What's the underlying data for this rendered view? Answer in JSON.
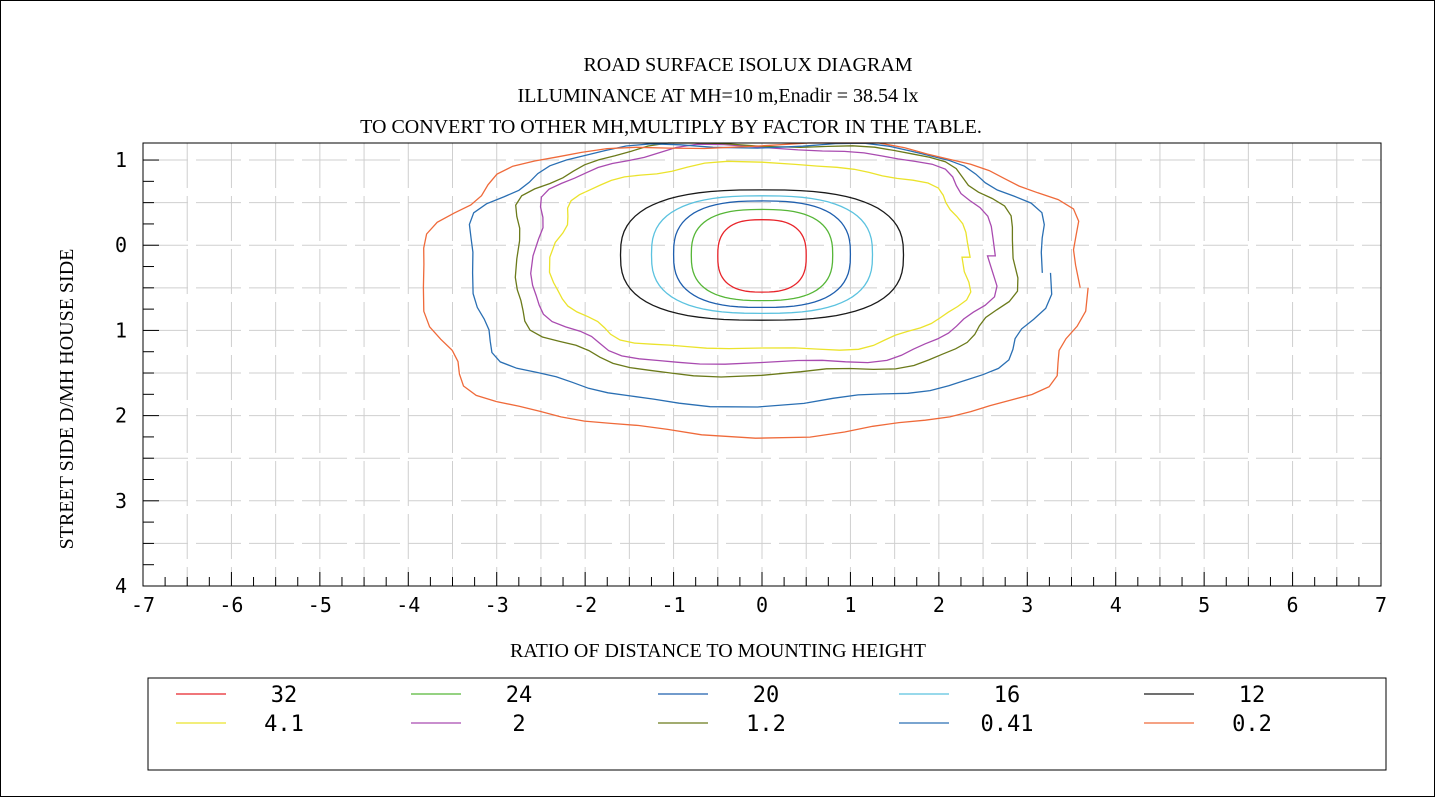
{
  "chart_data": {
    "type": "contour",
    "title": "ROAD SURFACE ISOLUX DIAGRAM",
    "subtitle_lines": [
      "ILLUMINANCE AT MH=10 m,Enadir = 38.54  lx",
      "TO CONVERT TO OTHER MH,MULTIPLY BY FACTOR IN THE TABLE."
    ],
    "xlabel": "RATIO OF DISTANCE TO MOUNTING HEIGHT",
    "ylabel": "STREET SIDE  D/MH  HOUSE SIDE",
    "xlim": [
      -7,
      7
    ],
    "ylim": [
      -1.2,
      4
    ],
    "y_inverted": true,
    "x_ticks": [
      -7,
      -6,
      -5,
      -4,
      -3,
      -2,
      -1,
      0,
      1,
      2,
      3,
      4,
      5,
      6,
      7
    ],
    "x_tick_labels": [
      "-7",
      "-6",
      "-5",
      "-4",
      "-3",
      "-2",
      "-1",
      "0",
      "1",
      "2",
      "3",
      "4",
      "5",
      "6",
      "7"
    ],
    "y_ticks": [
      -1,
      0,
      1,
      2,
      3,
      4
    ],
    "y_tick_labels": [
      "1",
      "0",
      "1",
      "2",
      "3",
      "4"
    ],
    "grid": true,
    "legend_position": "bottom",
    "levels": [
      {
        "value": 32,
        "label": "32",
        "color": "#e8242a",
        "xmin": -0.5,
        "xmax": 0.5,
        "ymin": -0.3,
        "ymax": 0.55
      },
      {
        "value": 24,
        "label": "24",
        "color": "#56b637",
        "xmin": -0.8,
        "xmax": 0.8,
        "ymin": -0.42,
        "ymax": 0.65
      },
      {
        "value": 20,
        "label": "20",
        "color": "#1f5fae",
        "xmin": -1.0,
        "xmax": 1.0,
        "ymin": -0.52,
        "ymax": 0.73
      },
      {
        "value": 16,
        "label": "16",
        "color": "#5bc2df",
        "xmin": -1.25,
        "xmax": 1.25,
        "ymin": -0.58,
        "ymax": 0.8
      },
      {
        "value": 12,
        "label": "12",
        "color": "#1a1a1a",
        "xmin": -1.6,
        "xmax": 1.6,
        "ymin": -0.65,
        "ymax": 0.88
      },
      {
        "value": 4.1,
        "label": "4.1",
        "color": "#ebe32c",
        "xmin": -2.35,
        "xmax": 2.35,
        "ymin": -0.95,
        "ymax": 1.23
      },
      {
        "value": 2,
        "label": "2",
        "color": "#a94bb0",
        "xmin": -2.6,
        "xmax": 2.6,
        "ymin": -1.15,
        "ymax": 1.4
      },
      {
        "value": 1.2,
        "label": "1.2",
        "color": "#6b7a1a",
        "xmin": -2.82,
        "xmax": 2.82,
        "ymin": -1.2,
        "ymax": 1.52
      },
      {
        "value": 0.41,
        "label": "0.41",
        "color": "#2a6fb3",
        "xmin": -3.3,
        "xmax": 3.2,
        "ymin": -1.2,
        "ymax": 1.85
      },
      {
        "value": 0.2,
        "label": "0.2",
        "color": "#ef6a3a",
        "xmin": -3.8,
        "xmax": 3.65,
        "ymin": -1.2,
        "ymax": 2.2
      }
    ]
  }
}
